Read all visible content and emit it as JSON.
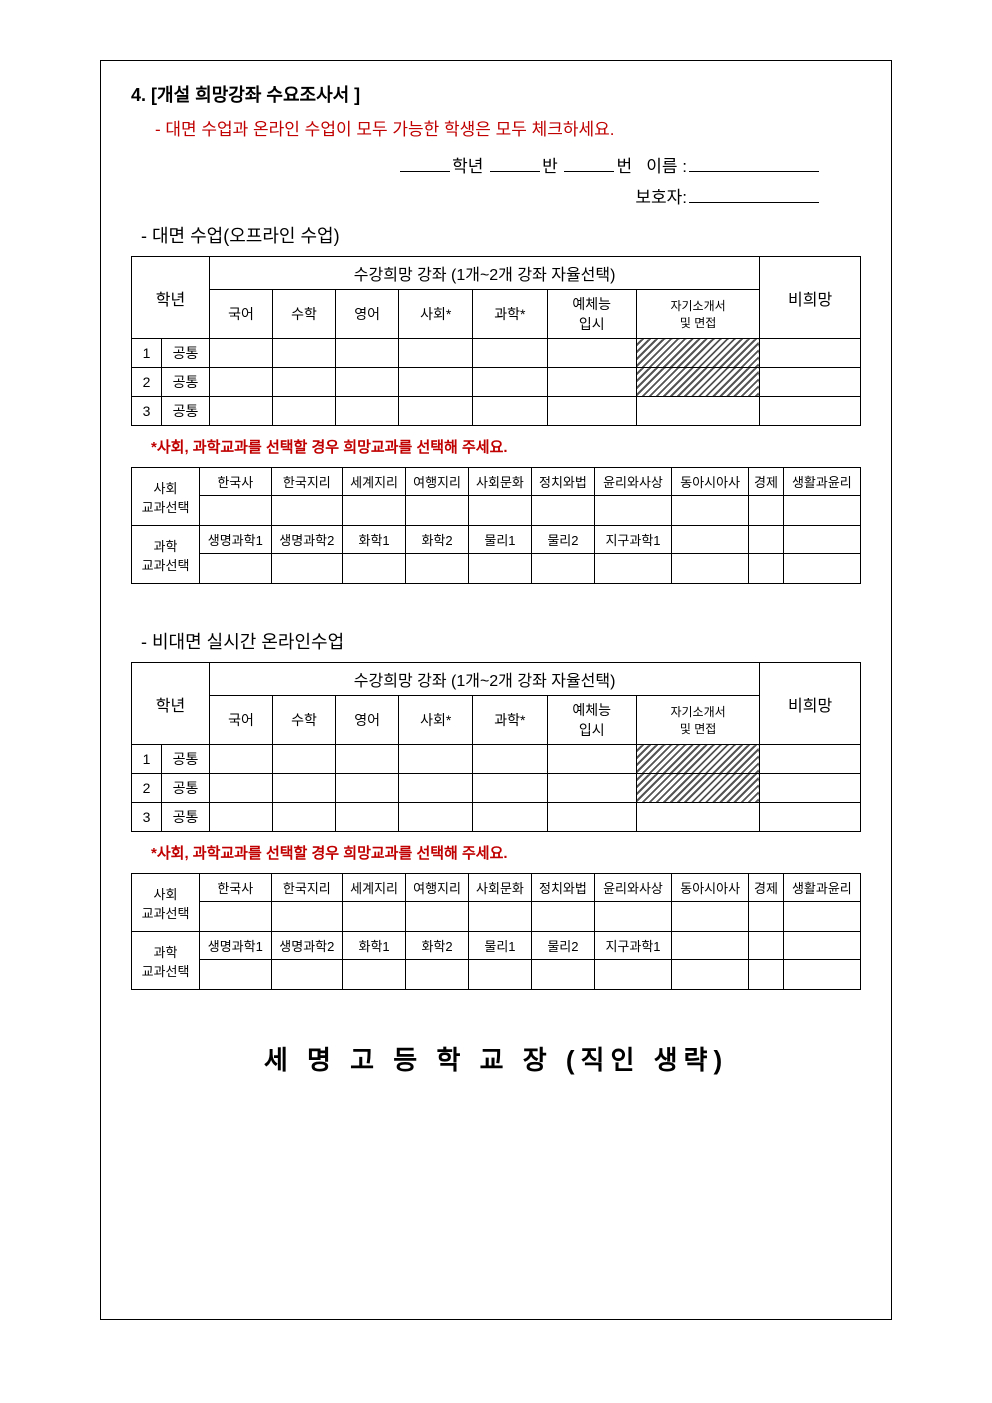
{
  "header": {
    "number": "4.",
    "title": "[개설 희망강좌 수요조사서 ]",
    "instruction": "- 대면 수업과 온라인 수업이 모두 가능한 학생은 모두 체크하세요.",
    "grade_label": "학년",
    "class_label": "반",
    "number_label": "번",
    "name_label": "이름 :",
    "guardian_label": "보호자:"
  },
  "section1": {
    "heading": "- 대면 수업(오프라인 수업)",
    "course_header": "수강희망 강좌 (1개~2개 강좌 자율선택)",
    "grade_header": "학년",
    "unhope": "비희망",
    "columns": [
      "국어",
      "수학",
      "영어",
      "사회*",
      "과학*",
      "예체능\n입시",
      "자기소개서\n및 면접"
    ],
    "rows": [
      {
        "num": "1",
        "label": "공통"
      },
      {
        "num": "2",
        "label": "공통"
      },
      {
        "num": "3",
        "label": "공통"
      }
    ],
    "note": "*사회, 과학교과를 선택할 경우 희망교과를 선택해 주세요.",
    "social_label": "사회\n교과선택",
    "science_label": "과학\n교과선택",
    "social_subjects": [
      "한국사",
      "한국지리",
      "세계지리",
      "여행지리",
      "사회문화",
      "정치와법",
      "윤리와사상",
      "동아시아사",
      "경제",
      "생활과윤리"
    ],
    "science_subjects": [
      "생명과학1",
      "생명과학2",
      "화학1",
      "화학2",
      "물리1",
      "물리2",
      "지구과학1",
      "",
      "",
      ""
    ]
  },
  "section2": {
    "heading": "- 비대면 실시간 온라인수업",
    "course_header": "수강희망 강좌 (1개~2개 강좌 자율선택)",
    "grade_header": "학년",
    "unhope": "비희망",
    "columns": [
      "국어",
      "수학",
      "영어",
      "사회*",
      "과학*",
      "예체능\n입시",
      "자기소개서\n및 면접"
    ],
    "rows": [
      {
        "num": "1",
        "label": "공통"
      },
      {
        "num": "2",
        "label": "공통"
      },
      {
        "num": "3",
        "label": "공통"
      }
    ],
    "note": "*사회, 과학교과를 선택할 경우 희망교과를 선택해 주세요.",
    "social_label": "사회\n교과선택",
    "science_label": "과학\n교과선택",
    "social_subjects": [
      "한국사",
      "한국지리",
      "세계지리",
      "여행지리",
      "사회문화",
      "정치와법",
      "윤리와사상",
      "동아시아사",
      "경제",
      "생활과윤리"
    ],
    "science_subjects": [
      "생명과학1",
      "생명과학2",
      "화학1",
      "화학2",
      "물리1",
      "물리2",
      "지구과학1",
      "",
      "",
      ""
    ]
  },
  "footer": "세 명 고 등 학 교 장 (직인 생략)"
}
